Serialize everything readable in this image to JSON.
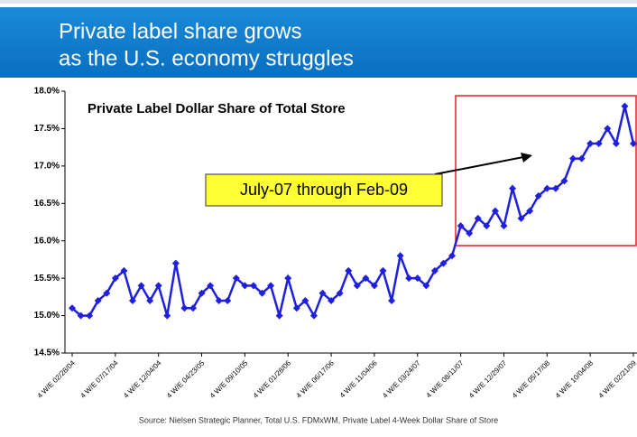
{
  "header": {
    "lines": [
      "Private label share grows",
      "as the U.S. economy struggles"
    ]
  },
  "chart_data": {
    "type": "line",
    "title": "Private Label Dollar Share of Total Store",
    "annotation": "July-07 through Feb-09",
    "source": "Source: Nielsen Strategic Planner, Total U.S. FDMxWM, Private Label 4-Week Dollar Share of Store",
    "categories": [
      "4 W/E 02/28/04",
      null,
      null,
      null,
      null,
      "4 W/E 07/17/04",
      null,
      null,
      null,
      null,
      "4 W/E 12/04/04",
      null,
      null,
      null,
      null,
      "4 W/E 04/23/05",
      null,
      null,
      null,
      null,
      "4 W/E 09/10/05",
      null,
      null,
      null,
      null,
      "4 W/E 01/28/06",
      null,
      null,
      null,
      null,
      "4 W/E 06/17/06",
      null,
      null,
      null,
      null,
      "4 W/E 11/04/06",
      null,
      null,
      null,
      null,
      "4 W/E 03/24/07",
      null,
      null,
      null,
      null,
      "4 W/E 08/11/07",
      null,
      null,
      null,
      null,
      "4 W/E 12/29/07",
      null,
      null,
      null,
      null,
      "4 W/E 05/17/08",
      null,
      null,
      null,
      null,
      "4 W/E 10/04/08",
      null,
      null,
      null,
      null,
      "4 W/E 02/21/09"
    ],
    "series": [
      {
        "name": "Private Label Dollar Share",
        "color": "#1f1fe0",
        "values": [
          15.1,
          15.0,
          15.0,
          15.2,
          15.3,
          15.5,
          15.6,
          15.2,
          15.4,
          15.2,
          15.4,
          15.0,
          15.7,
          15.1,
          15.1,
          15.3,
          15.4,
          15.2,
          15.2,
          15.5,
          15.4,
          15.4,
          15.3,
          15.4,
          15.0,
          15.5,
          15.1,
          15.2,
          15.0,
          15.3,
          15.2,
          15.3,
          15.6,
          15.4,
          15.5,
          15.4,
          15.6,
          15.2,
          15.8,
          15.5,
          15.5,
          15.4,
          15.6,
          15.7,
          15.8,
          16.2,
          16.1,
          16.3,
          16.2,
          16.4,
          16.2,
          16.7,
          16.3,
          16.4,
          16.6,
          16.7,
          16.7,
          16.8,
          17.1,
          17.1,
          17.3,
          17.3,
          17.5,
          17.3,
          17.8,
          17.3
        ]
      }
    ],
    "ylim": [
      14.5,
      18.0
    ],
    "yticks": [
      {
        "value": 14.5,
        "label": "14.5%"
      },
      {
        "value": 15.0,
        "label": "15.0%"
      },
      {
        "value": 15.5,
        "label": "15.5%"
      },
      {
        "value": 16.0,
        "label": "16.0%"
      },
      {
        "value": 16.5,
        "label": "16.5%"
      },
      {
        "value": 17.0,
        "label": "17.0%"
      },
      {
        "value": 17.5,
        "label": "17.5%"
      },
      {
        "value": 18.0,
        "label": "18.0%"
      }
    ],
    "grid": false
  }
}
